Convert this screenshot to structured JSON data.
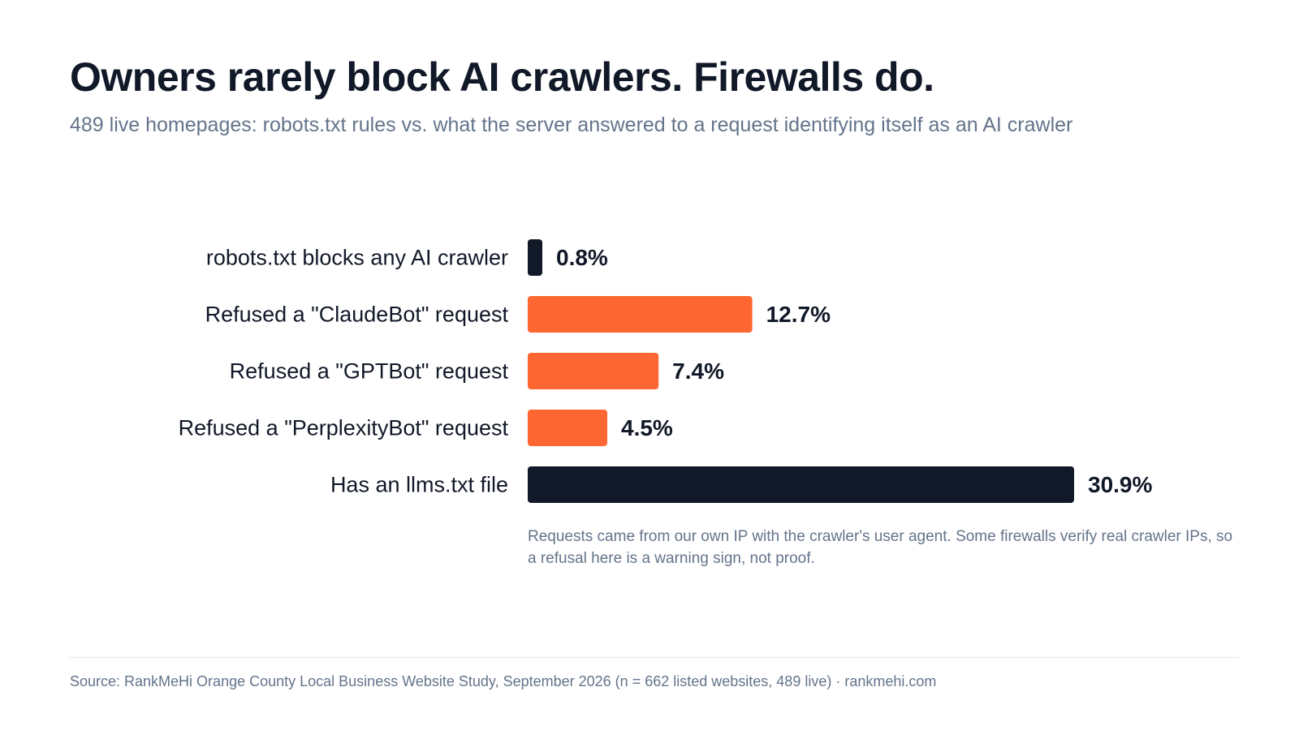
{
  "header": {
    "title": "Owners rarely block AI crawlers. Firewalls do.",
    "subtitle": "489 live homepages: robots.txt rules vs. what the server answered to a request identifying itself as an AI crawler"
  },
  "chart_data": {
    "type": "bar",
    "orientation": "horizontal",
    "categories": [
      "robots.txt blocks any AI crawler",
      "Refused a \"ClaudeBot\" request",
      "Refused a \"GPTBot\" request",
      "Refused a \"PerplexityBot\" request",
      "Has an llms.txt file"
    ],
    "values": [
      0.8,
      12.7,
      7.4,
      4.5,
      30.9
    ],
    "data_labels": [
      "0.8%",
      "12.7%",
      "7.4%",
      "4.5%",
      "30.9%"
    ],
    "bar_colors": [
      "#111827",
      "#fe6632",
      "#fe6632",
      "#fe6632",
      "#111827"
    ],
    "value_unit": "%",
    "xlim": [
      0,
      30.9
    ],
    "grid": false,
    "legend": "none",
    "xlabel": "",
    "ylabel": ""
  },
  "note": "Requests came from our own IP with the crawler's user agent. Some firewalls verify real crawler IPs, so a refusal here is a warning sign, not proof.",
  "footer": {
    "source": "Source: RankMeHi Orange County Local Business Website Study, September 2026 (n = 662 listed websites, 489 live) · rankmehi.com"
  },
  "colors": {
    "dark": "#111827",
    "accent": "#fe6632",
    "muted": "#64748b"
  }
}
